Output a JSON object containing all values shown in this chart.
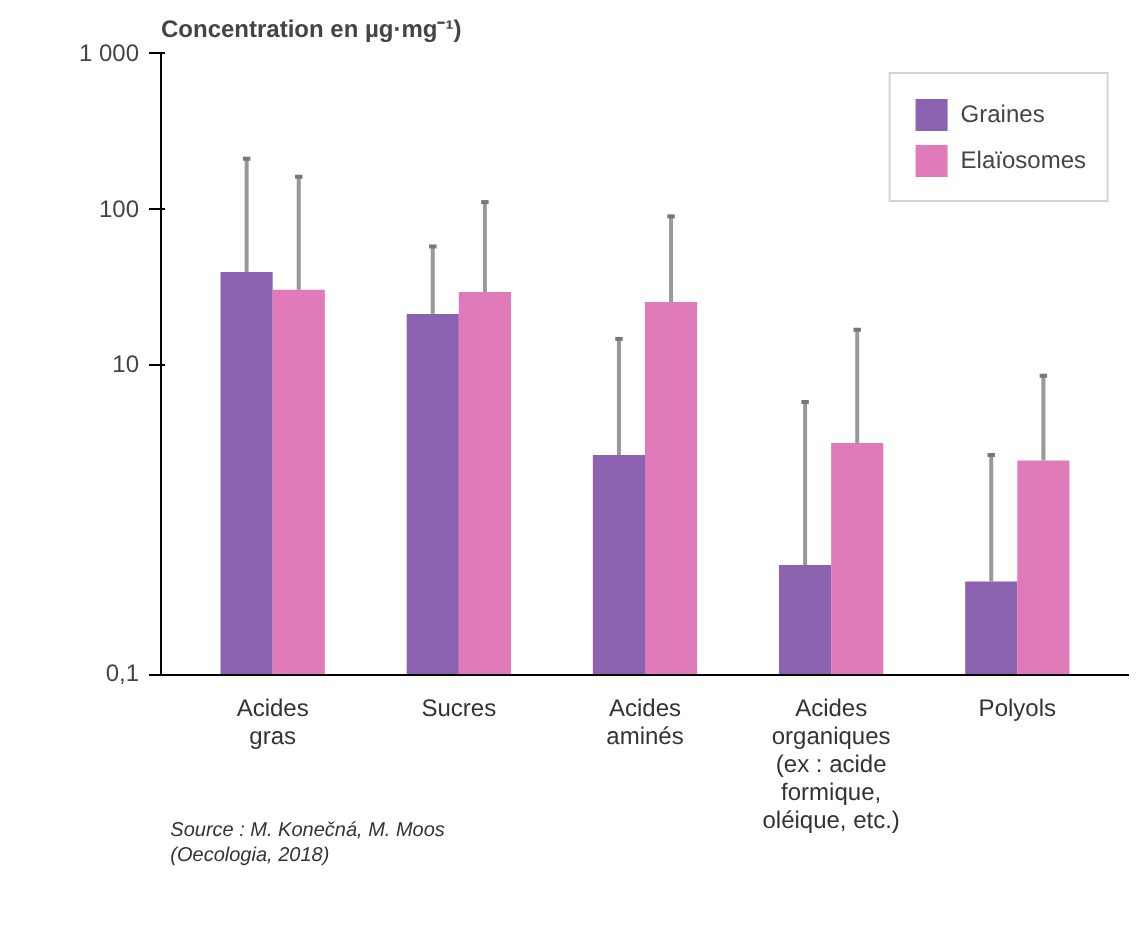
{
  "chart_data": {
    "type": "bar",
    "ylabel": "Concentration en µg·mg⁻¹)",
    "categories": [
      "Acides\ngras",
      "Sucres",
      "Acides\naminés",
      "Acides\norganiques\n(ex : acide\nformique,\noléique, etc.)",
      "Polyols"
    ],
    "series": [
      {
        "name": "Graines",
        "color": "#8a62b0",
        "values": [
          39,
          21,
          2.6,
          0.51,
          0.4
        ],
        "errors": [
          [
            39,
            209
          ],
          [
            21,
            57
          ],
          [
            2.6,
            14.5
          ],
          [
            0.51,
            5.7
          ],
          [
            0.4,
            2.6
          ]
        ]
      },
      {
        "name": "Elaïosomes",
        "color": "#e07ab8",
        "values": [
          30,
          29,
          25,
          3.1,
          2.4
        ],
        "errors": [
          [
            30,
            160
          ],
          [
            29,
            110
          ],
          [
            25,
            89
          ],
          [
            3.1,
            16.6
          ],
          [
            2.4,
            8.4
          ]
        ]
      }
    ],
    "log": "y",
    "ylim": [
      0.1,
      1000
    ],
    "yticks": [
      {
        "value": 0.1,
        "label": "0,1"
      },
      10,
      100,
      {
        "value": 1000,
        "label": "1 000"
      }
    ],
    "grid": false,
    "legend": "top right",
    "annotations": [
      "Source : M. Konečná, M. Moos\n(Oecologia, 2018)"
    ]
  }
}
